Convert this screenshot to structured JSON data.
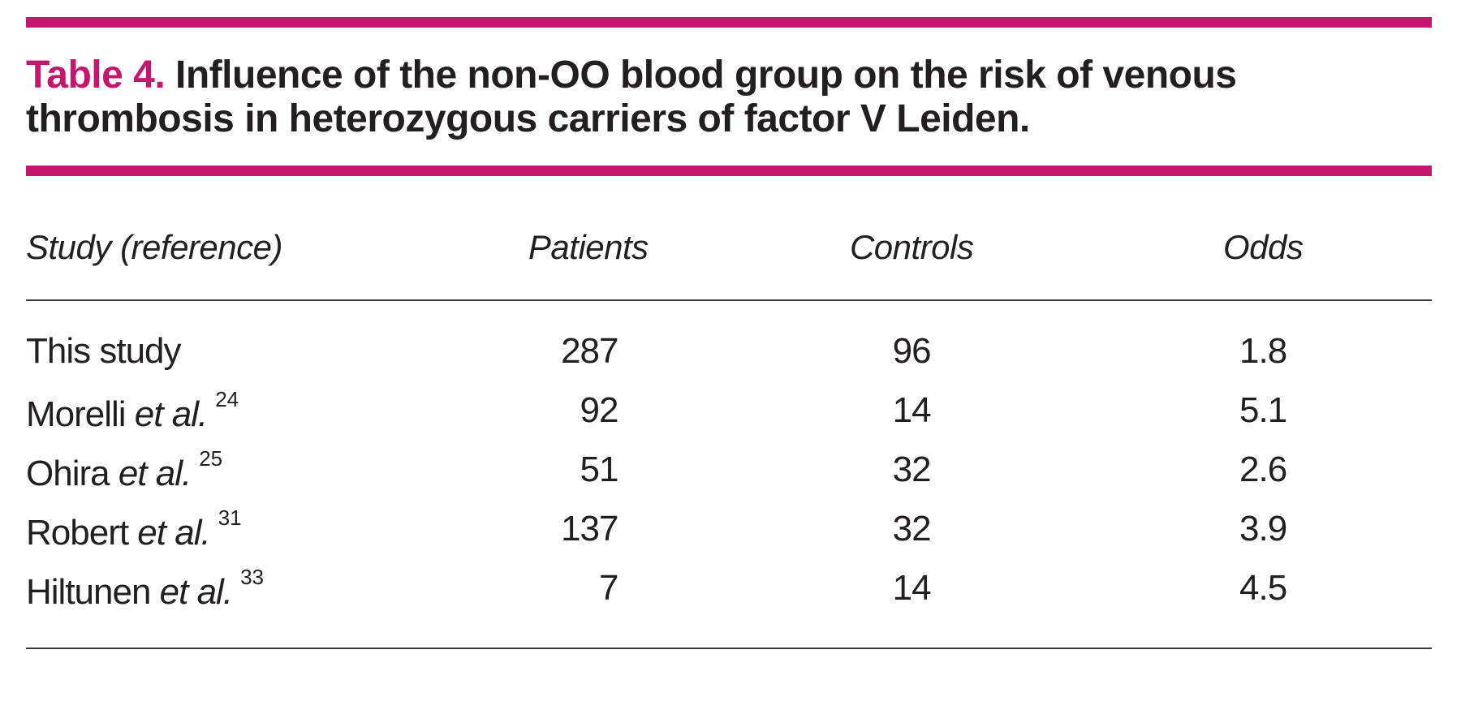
{
  "accent_color": "#c6156e",
  "title": {
    "label": "Table 4.",
    "text": "Influence of the non-OO blood group on the risk of venous thrombosis in heterozygous carriers of factor V Leiden."
  },
  "table": {
    "columns": [
      "Study (reference)",
      "Patients",
      "Controls",
      "Odds"
    ],
    "rows": [
      {
        "study": "This study",
        "et_al": "",
        "ref": "",
        "patients": "287",
        "controls": "96",
        "odds": "1.8"
      },
      {
        "study": "Morelli",
        "et_al": "et al.",
        "ref": "24",
        "patients": "92",
        "controls": "14",
        "odds": "5.1"
      },
      {
        "study": "Ohira",
        "et_al": "et al.",
        "ref": "25",
        "patients": "51",
        "controls": "32",
        "odds": "2.6"
      },
      {
        "study": "Robert",
        "et_al": "et al.",
        "ref": "31",
        "patients": "137",
        "controls": "32",
        "odds": "3.9"
      },
      {
        "study": "Hiltunen",
        "et_al": "et al.",
        "ref": "33",
        "patients": "7",
        "controls": "14",
        "odds": "4.5"
      }
    ]
  }
}
